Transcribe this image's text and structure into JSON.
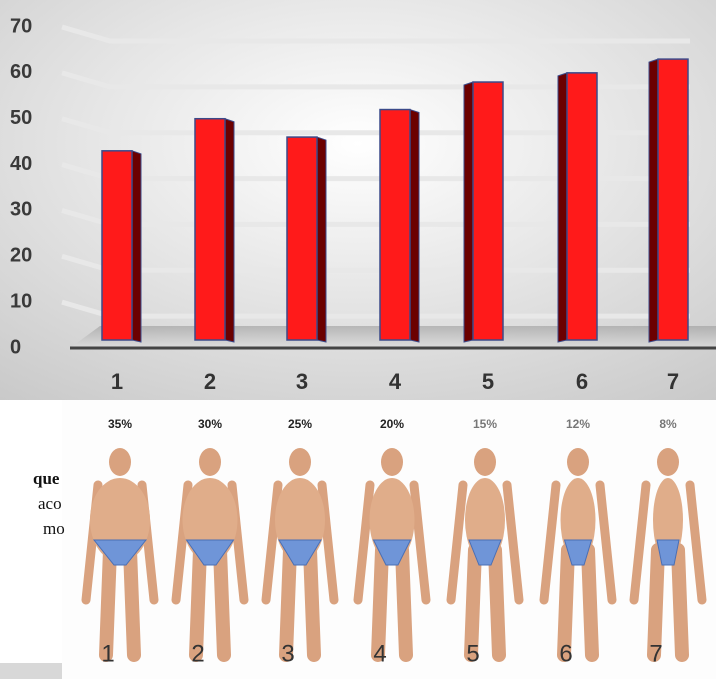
{
  "chart_data": {
    "type": "bar",
    "categories": [
      "1",
      "2",
      "3",
      "4",
      "5",
      "6",
      "7"
    ],
    "values": [
      43,
      50,
      46,
      52,
      58,
      60,
      63
    ],
    "color": "#ff1a1a",
    "ylim": [
      0,
      70
    ],
    "yticks": [
      0,
      10,
      20,
      30,
      40,
      50,
      60,
      70
    ],
    "grid": true
  },
  "figure": {
    "percents": [
      "35%",
      "30%",
      "25%",
      "20%",
      "15%",
      "12%",
      "8%"
    ],
    "numbers": [
      "1",
      "2",
      "3",
      "4",
      "5",
      "6",
      "7"
    ]
  },
  "side_text": [
    "que",
    "aco",
    "mo"
  ]
}
